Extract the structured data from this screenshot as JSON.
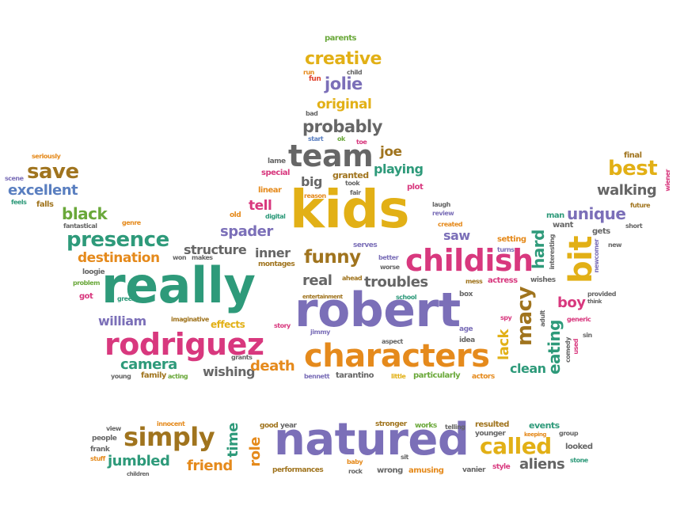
{
  "words": {
    "kids": "kids",
    "really": "really",
    "robert": "robert",
    "natured": "natured",
    "rodriguez": "rodriguez",
    "characters": "characters",
    "childish": "childish",
    "team": "team",
    "simply": "simply",
    "called": "called",
    "bit": "bit",
    "presence": "presence",
    "funny": "funny",
    "probably": "probably",
    "best": "best",
    "save": "save",
    "creative": "creative",
    "jolie": "jolie",
    "original": "original",
    "troubles": "troubles",
    "macy": "macy",
    "camera": "camera",
    "death": "death",
    "spader": "spader",
    "unique": "unique",
    "black": "black",
    "walking": "walking",
    "excellent": "excellent",
    "destination": "destination",
    "hard": "hard",
    "eating": "eating",
    "jumbled": "jumbled",
    "friend": "friend",
    "aliens": "aliens",
    "role": "role",
    "time": "time",
    "clean": "clean",
    "boy": "boy",
    "william": "william",
    "wishing": "wishing",
    "structure": "structure",
    "inner": "inner",
    "real": "real",
    "joe": "joe",
    "playing": "playing",
    "big": "big",
    "tell": "tell",
    "saw": "saw",
    "lack": "lack",
    "effects": "effects",
    "parents": "parents",
    "child": "child",
    "run": "run",
    "fun": "fun",
    "bad": "bad",
    "start": "start",
    "ok": "ok",
    "toe": "toe",
    "lame": "lame",
    "special": "special",
    "granted": "granted",
    "took": "took",
    "linear": "linear",
    "reason": "reason",
    "fair": "fair",
    "plot": "plot",
    "laugh": "laugh",
    "review": "review",
    "created": "created",
    "seriously": "seriously",
    "scene": "scene",
    "feels": "feels",
    "falls": "falls",
    "genre": "genre",
    "fantastical": "fantastical",
    "old": "old",
    "digital": "digital",
    "montages": "montages",
    "serves": "serves",
    "better": "better",
    "worse": "worse",
    "ahead": "ahead",
    "entertainment": "entertainment",
    "school": "school",
    "mess": "mess",
    "box": "box",
    "actress": "actress",
    "setting": "setting",
    "turns": "turns",
    "wishes": "wishes",
    "final": "final",
    "wiener": "wiener",
    "future": "future",
    "man": "man",
    "want": "want",
    "gets": "gets",
    "new": "new",
    "newcomer": "newcomer",
    "interesting": "interesting",
    "provided": "provided",
    "think": "think",
    "adult": "adult",
    "spy": "spy",
    "generic": "generic",
    "sin": "sin",
    "used": "used",
    "comedy": "comedy",
    "age": "age",
    "idea": "idea",
    "aspect": "aspect",
    "jimmy": "jimmy",
    "story": "story",
    "imaginative": "imaginative",
    "green": "green",
    "got": "got",
    "problem": "problem",
    "loogie": "loogie",
    "won": "won",
    "makes": "makes",
    "grants": "grants",
    "young": "young",
    "family": "family",
    "acting": "acting",
    "bennett": "bennett",
    "tarantino": "tarantino",
    "little": "little",
    "particularly": "particularly",
    "actors": "actors",
    "view": "view",
    "people": "people",
    "frank": "frank",
    "stuff": "stuff",
    "children": "children",
    "innocent": "innocent",
    "good": "good",
    "year": "year",
    "performances": "performances",
    "baby": "baby",
    "rock": "rock",
    "wrong": "wrong",
    "amusing": "amusing",
    "stronger": "stronger",
    "works": "works",
    "telling": "telling",
    "sit": "sit",
    "resulted": "resulted",
    "younger": "younger",
    "vanier": "vanier",
    "style": "style",
    "events": "events",
    "keeping": "keeping",
    "group": "group",
    "looked": "looked",
    "stone": "stone",
    "short": "short"
  }
}
